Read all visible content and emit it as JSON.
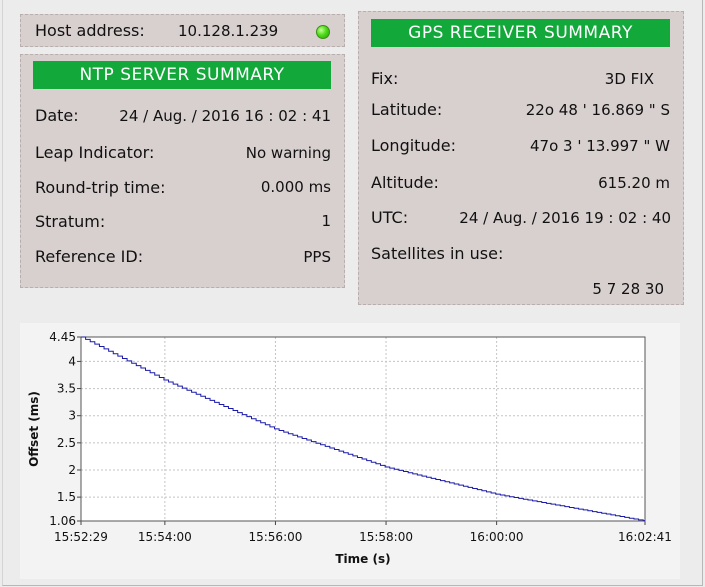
{
  "host": {
    "label": "Host address:",
    "value": "10.128.1.239",
    "status_color": "#4fdc1a"
  },
  "ntp": {
    "title": "NTP SERVER SUMMARY",
    "date_label": "Date:",
    "date_value": "24 / Aug. / 2016 16 : 02 : 41",
    "leap_label": "Leap Indicator:",
    "leap_value": "No warning",
    "rtt_label": "Round-trip time:",
    "rtt_value": "0.000 ms",
    "stratum_label": "Stratum:",
    "stratum_value": "1",
    "refid_label": "Reference ID:",
    "refid_value": "PPS"
  },
  "gps": {
    "title": "GPS RECEIVER SUMMARY",
    "fix_label": "Fix:",
    "fix_value": "3D FIX",
    "lat_label": "Latitude:",
    "lat_value": "22o 48 ' 16.869 \" S",
    "lon_label": "Longitude:",
    "lon_value": "47o  3 ' 13.997 \" W",
    "alt_label": "Altitude:",
    "alt_value": "615.20 m",
    "utc_label": "UTC:",
    "utc_value": "24 / Aug. / 2016 19 : 02 : 40",
    "sat_label": "Satellites in use:",
    "sat_value": "5 7 28 30"
  },
  "colors": {
    "accent": "#13a83a",
    "panel": "#d8cfcf",
    "series": "#1a1aa8"
  },
  "chart_data": {
    "type": "line",
    "xlabel": "Time (s)",
    "ylabel": "Offset (ms)",
    "ylim": [
      1.06,
      4.45
    ],
    "xlim": [
      "15:52:29",
      "16:02:41"
    ],
    "x_ticks": [
      "15:52:29",
      "15:54:00",
      "15:56:00",
      "15:58:00",
      "16:00:00",
      "16:02:41"
    ],
    "y_ticks": [
      "4.45",
      "4",
      "3.5",
      "3",
      "2.5",
      "2",
      "1.5",
      "1.06"
    ],
    "grid": true,
    "series": [
      {
        "x": [
          "15:52:29",
          "15:54:00",
          "15:56:00",
          "15:58:00",
          "16:00:00",
          "16:02:41"
        ],
        "values": [
          4.45,
          3.65,
          2.75,
          2.05,
          1.55,
          1.06
        ]
      }
    ]
  }
}
